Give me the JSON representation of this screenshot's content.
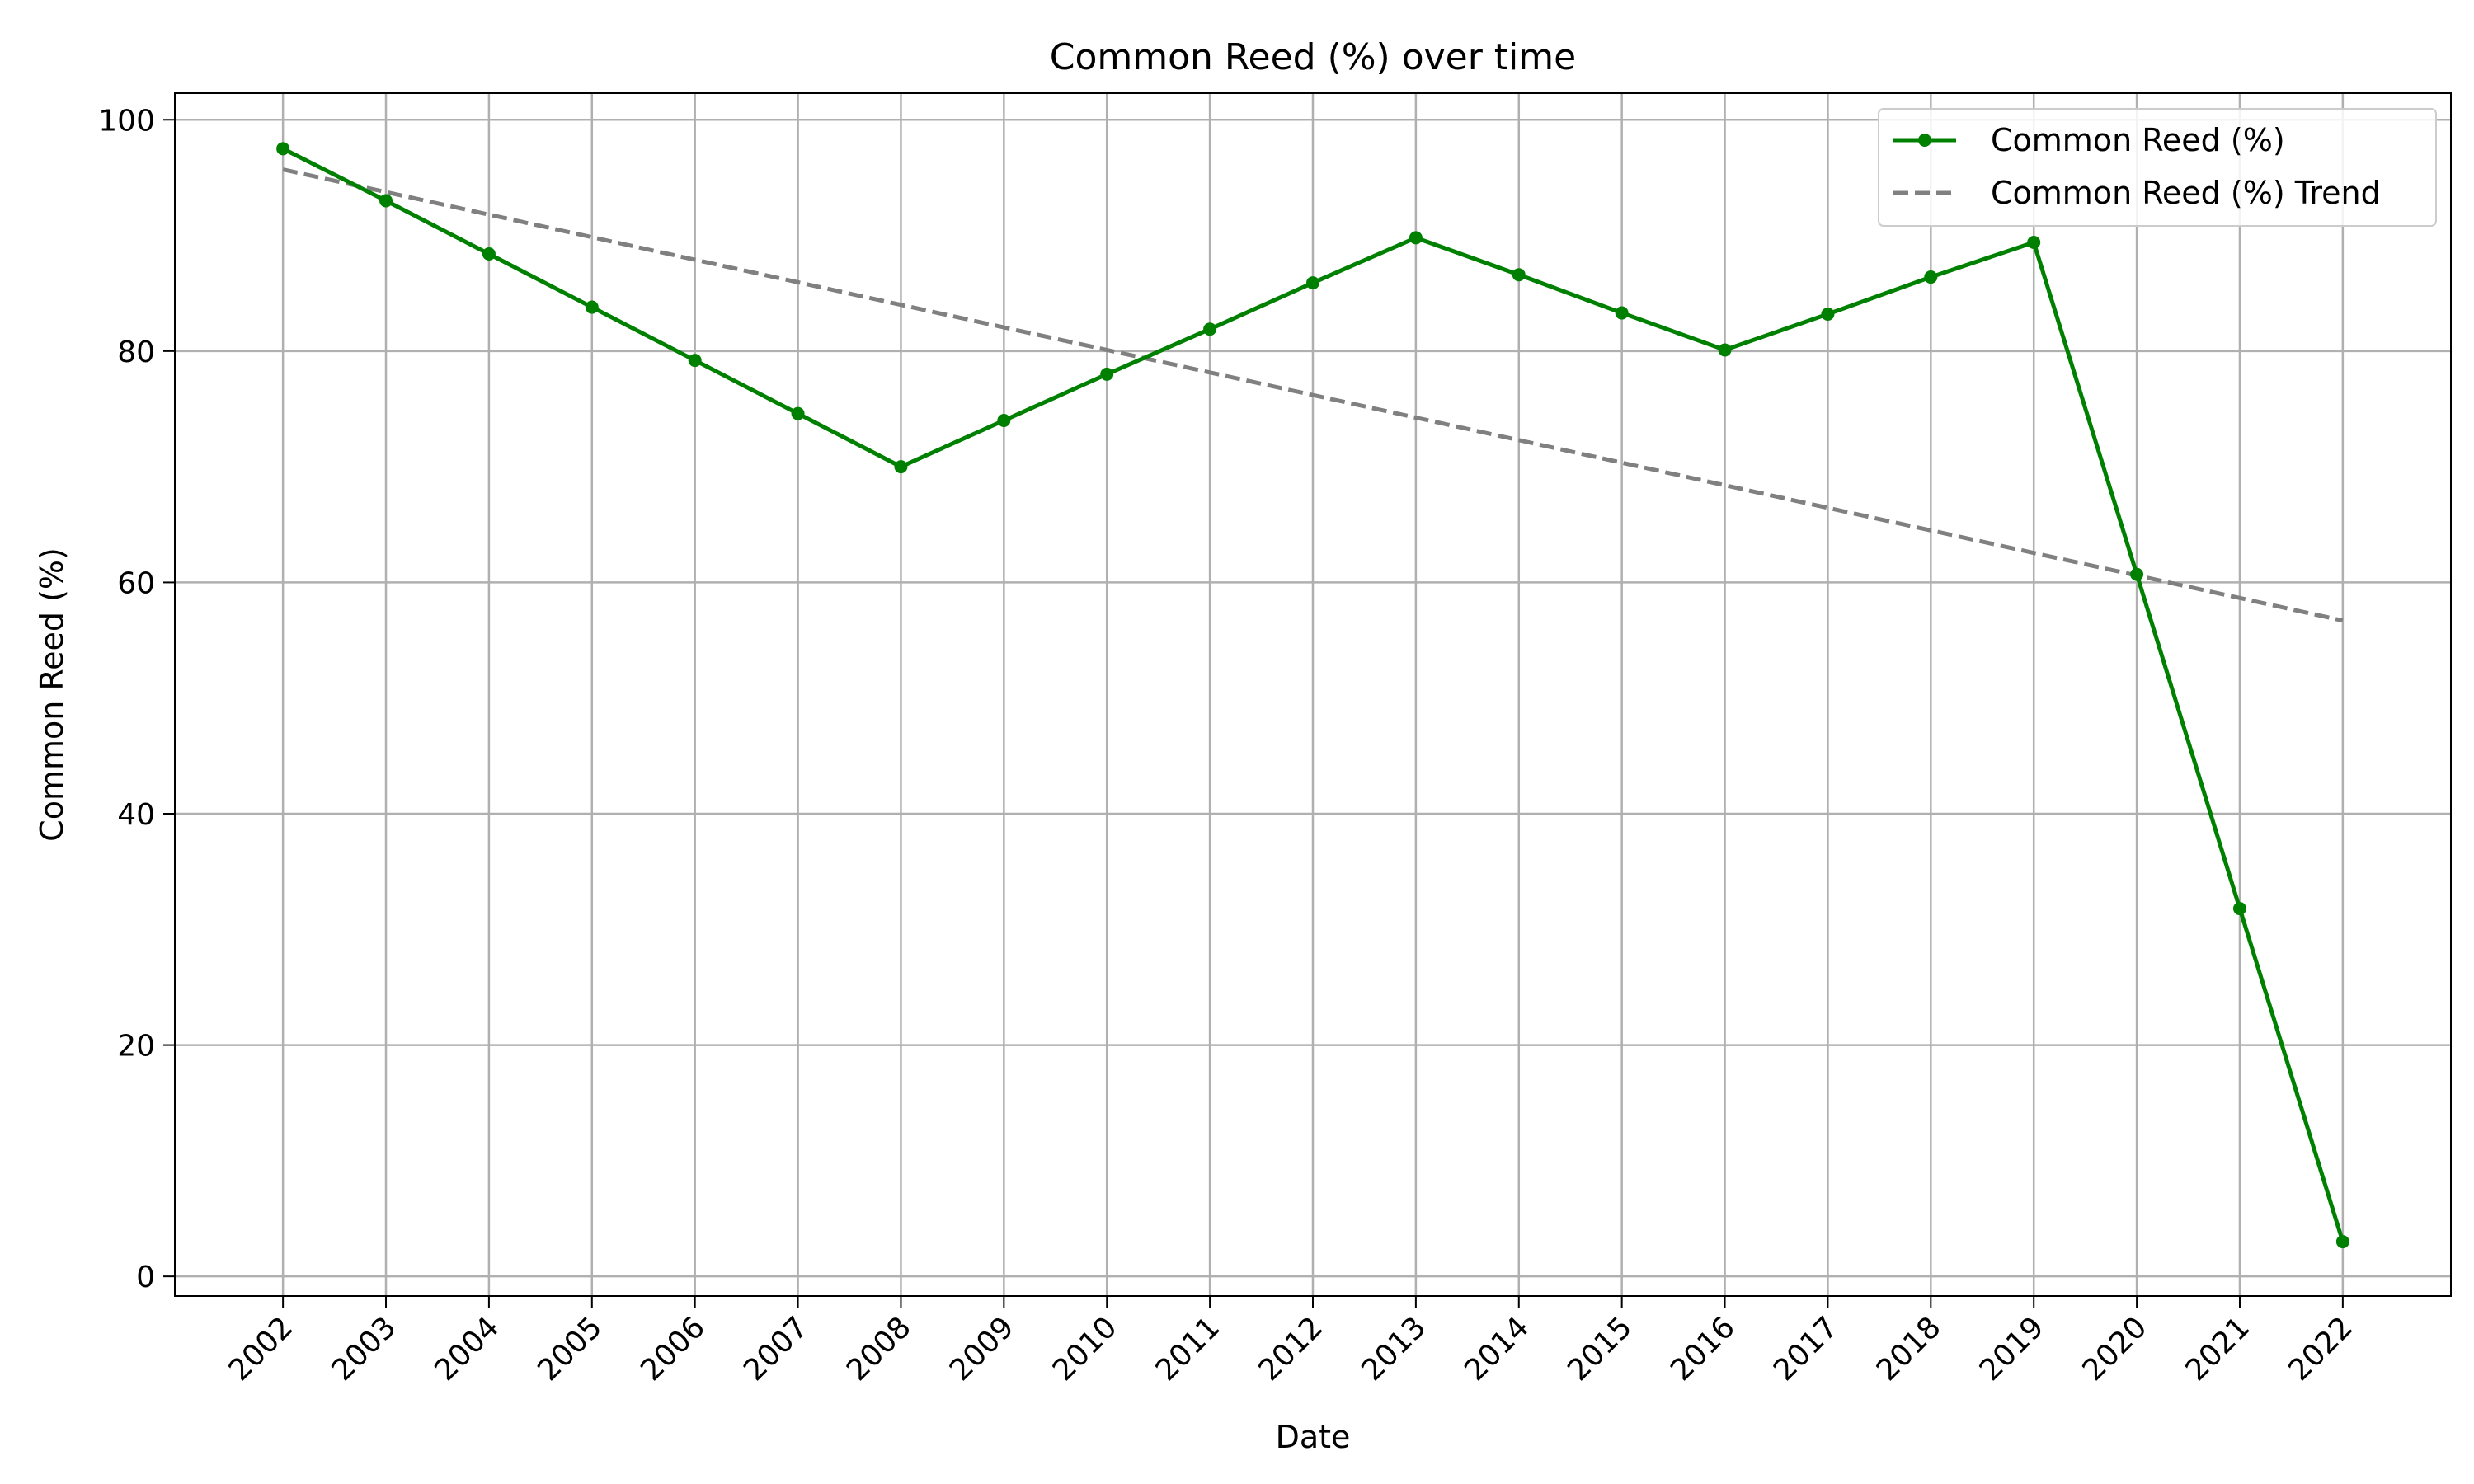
{
  "chart_data": {
    "type": "line",
    "title": "Common Reed (%) over time",
    "xlabel": "Date",
    "ylabel": "Common Reed (%)",
    "x": [
      "2002",
      "2003",
      "2004",
      "2005",
      "2006",
      "2007",
      "2008",
      "2009",
      "2010",
      "2011",
      "2012",
      "2013",
      "2014",
      "2015",
      "2016",
      "2017",
      "2018",
      "2019",
      "2020",
      "2021",
      "2022"
    ],
    "ylim": [
      -1.7,
      102.3
    ],
    "yticks": [
      0,
      20,
      40,
      60,
      80,
      100
    ],
    "grid": true,
    "legend_position": "top-right",
    "series": [
      {
        "name": "Common Reed (%)",
        "color": "#008000",
        "style": "solid",
        "marker": "circle",
        "values": [
          97.5,
          93.0,
          88.4,
          83.8,
          79.2,
          74.6,
          70.0,
          74.0,
          78.0,
          81.9,
          85.9,
          89.8,
          86.6,
          83.3,
          80.1,
          83.2,
          86.4,
          89.4,
          60.7,
          31.8,
          3.0
        ]
      },
      {
        "name": "Common Reed (%) Trend",
        "color": "#808080",
        "style": "dashed",
        "marker": "none",
        "values": [
          95.7,
          93.75,
          91.8,
          89.85,
          87.9,
          85.95,
          84.0,
          82.05,
          80.1,
          78.15,
          76.2,
          74.25,
          72.3,
          70.35,
          68.4,
          66.45,
          64.5,
          62.55,
          60.6,
          58.65,
          56.7
        ]
      }
    ]
  }
}
